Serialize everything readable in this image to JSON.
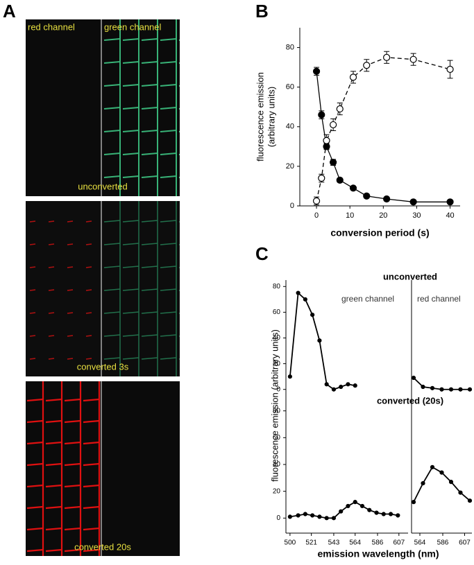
{
  "panel_labels": [
    "A",
    "B",
    "C"
  ],
  "image_panel": {
    "channels": [
      "red channel",
      "green channel"
    ],
    "captions": [
      "unconverted",
      "converted 3s",
      "converted 20s"
    ]
  },
  "figure_c": {
    "ylabel": "fluorescence emission (arbitrary units)",
    "xlabel": "emission wavelength (nm)"
  },
  "chart_data": [
    {
      "type": "line",
      "xlabel": "conversion period (s)",
      "ylabel": [
        "fluorescence emission",
        "(arbitrary units)"
      ],
      "x": [
        0,
        1.5,
        3,
        5,
        7,
        11,
        15,
        21,
        29,
        40
      ],
      "series": [
        {
          "color": "#000000",
          "marker": "filled",
          "style": "solid",
          "values": [
            68,
            46,
            30,
            22,
            13,
            9,
            5,
            3.5,
            2,
            2
          ],
          "error": [
            2,
            2,
            1.5,
            1.5,
            1,
            1,
            1,
            0.5,
            0.5,
            0.5
          ]
        },
        {
          "color": "#000000",
          "marker": "open",
          "style": "dashed",
          "values": [
            2.5,
            14,
            33,
            41,
            49,
            65,
            71,
            75,
            74,
            69
          ],
          "error": [
            2,
            2,
            3,
            3,
            3,
            3,
            3,
            3,
            3,
            4.5
          ]
        }
      ],
      "xlim": [
        -5,
        43
      ],
      "xticks": [
        0,
        10,
        20,
        30,
        40
      ],
      "ylim": [
        0,
        90
      ],
      "yticks": [
        0,
        20,
        40,
        60,
        80
      ]
    },
    {
      "type": "line",
      "title": "unconverted",
      "annotation": "green channel",
      "x": [
        500,
        508,
        515,
        522,
        529,
        536,
        543,
        550,
        557,
        564
      ],
      "series": [
        {
          "color": "#000000",
          "marker": "filled",
          "style": "solid",
          "values": [
            10,
            75,
            70,
            58,
            38,
            4,
            0,
            2,
            4,
            3
          ]
        }
      ],
      "xlim": [
        496,
        616
      ],
      "ylim": [
        -5,
        85
      ],
      "yticks": [
        0,
        20,
        40,
        60,
        80
      ]
    },
    {
      "type": "line",
      "annotation": "red channel",
      "x": [
        558,
        567,
        576,
        585,
        594,
        603,
        612
      ],
      "series": [
        {
          "color": "#000000",
          "marker": "filled",
          "style": "solid",
          "values": [
            9,
            2,
            1,
            0,
            0,
            0,
            0
          ]
        }
      ],
      "xlim": [
        556,
        614
      ],
      "ylim": [
        -5,
        85
      ]
    },
    {
      "type": "line",
      "title": "converted (20s)",
      "x": [
        500,
        508,
        515,
        522,
        529,
        536,
        543,
        550,
        557,
        564,
        571,
        578,
        585,
        592,
        599,
        606
      ],
      "series": [
        {
          "color": "#000000",
          "marker": "filled",
          "style": "solid",
          "values": [
            1,
            2,
            3,
            2,
            1,
            0,
            0,
            5,
            9,
            12,
            9,
            6,
            4,
            3,
            3,
            2
          ]
        }
      ],
      "xlim": [
        496,
        616
      ],
      "xticks": [
        500,
        521,
        543,
        564,
        586,
        607
      ],
      "ylim": [
        -5,
        85
      ],
      "yticks": [
        0,
        20,
        40,
        60,
        80
      ]
    },
    {
      "type": "line",
      "x": [
        558,
        567,
        576,
        585,
        594,
        603,
        612
      ],
      "series": [
        {
          "color": "#000000",
          "marker": "filled",
          "style": "solid",
          "values": [
            12,
            26,
            38,
            34,
            27,
            19,
            13
          ]
        }
      ],
      "xlim": [
        556,
        614
      ],
      "xticks": [
        564,
        586,
        607
      ],
      "ylim": [
        -5,
        85
      ]
    }
  ]
}
